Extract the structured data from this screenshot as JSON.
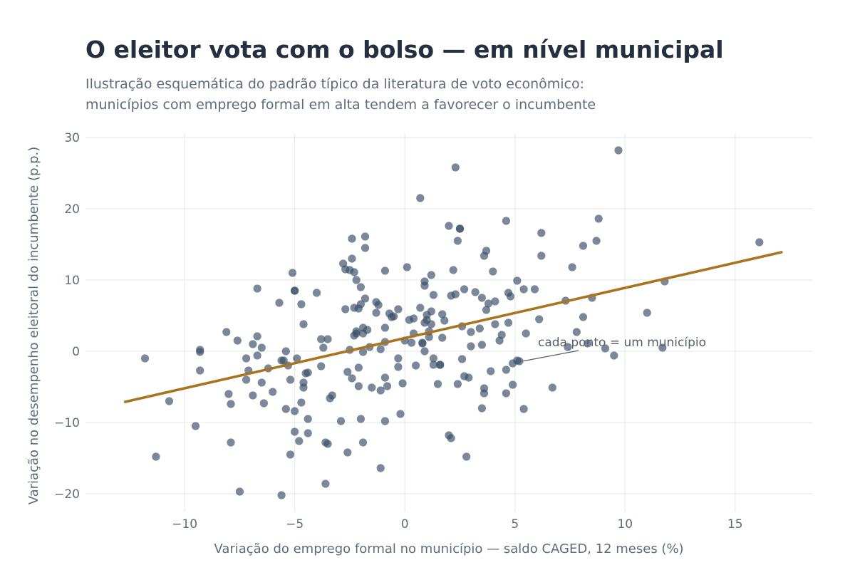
{
  "title": "O eleitor vota com o bolso — em nível municipal",
  "subtitle_lines": [
    "Ilustração esquemática do padrão típico da literatura de voto econômico:",
    "municípios com emprego formal em alta tendem a favorecer o incumbente"
  ],
  "chart_data": {
    "type": "scatter",
    "xlabel": "Variação do emprego formal no município — saldo CAGED, 12 meses (%)",
    "ylabel": "Variação no desempenho eleitoral do incumbente (p.p.)",
    "xlim": [
      -14.5,
      18.5
    ],
    "ylim": [
      -22.5,
      30.5
    ],
    "x_ticks": [
      -10,
      -5,
      0,
      5,
      10,
      15
    ],
    "x_tick_labels": [
      "−10",
      "−5",
      "0",
      "5",
      "10",
      "15"
    ],
    "y_ticks": [
      -20,
      -10,
      0,
      10,
      20,
      30
    ],
    "y_tick_labels": [
      "−20",
      "−10",
      "0",
      "10",
      "20",
      "30"
    ],
    "grid": true,
    "colors": {
      "points": "#3d5068",
      "trend": "#a87420",
      "grid": "#e6e9ee",
      "annotation": "#555e6a"
    },
    "trend_line": {
      "x": [
        -12.7,
        17.1
      ],
      "y": [
        -7.1,
        13.9
      ]
    },
    "annotation": {
      "text": "cada ponto = um município",
      "point": [
        5.2,
        -1.4
      ]
    },
    "points": [
      [
        -11.8,
        -1.0
      ],
      [
        -11.3,
        -14.8
      ],
      [
        -10.7,
        -7.0
      ],
      [
        -9.5,
        -10.5
      ],
      [
        -9.3,
        -0.1
      ],
      [
        -9.3,
        0.2
      ],
      [
        -9.3,
        -2.7
      ],
      [
        -8.1,
        2.7
      ],
      [
        -8.0,
        -6.0
      ],
      [
        -7.9,
        -7.4
      ],
      [
        -7.9,
        -12.8
      ],
      [
        -7.6,
        1.5
      ],
      [
        -7.5,
        -19.7
      ],
      [
        -7.2,
        -1.0
      ],
      [
        -7.2,
        -4.0
      ],
      [
        -7.1,
        -2.7
      ],
      [
        -6.9,
        1.0
      ],
      [
        -6.9,
        -6.2
      ],
      [
        -6.7,
        2.1
      ],
      [
        -6.7,
        -0.6
      ],
      [
        -6.7,
        8.8
      ],
      [
        -6.5,
        0.5
      ],
      [
        -6.5,
        -4.4
      ],
      [
        -6.4,
        -7.3
      ],
      [
        -6.2,
        -2.4
      ],
      [
        -6.0,
        -5.7
      ],
      [
        -5.7,
        6.8
      ],
      [
        -5.6,
        -1.3
      ],
      [
        -5.6,
        -20.2
      ],
      [
        -5.5,
        -1.3
      ],
      [
        -5.4,
        -8.1
      ],
      [
        -5.4,
        0.0
      ],
      [
        -5.3,
        -2.0
      ],
      [
        -5.2,
        -4.0
      ],
      [
        -5.2,
        -14.5
      ],
      [
        -5.1,
        11.0
      ],
      [
        -5.0,
        8.5
      ],
      [
        -5.0,
        8.5
      ],
      [
        -5.0,
        -8.4
      ],
      [
        -5.0,
        -11.3
      ],
      [
        -4.9,
        -1.0
      ],
      [
        -4.8,
        -12.6
      ],
      [
        -4.7,
        6.6
      ],
      [
        -4.7,
        -7.2
      ],
      [
        -4.6,
        -4.4
      ],
      [
        -4.6,
        -5.1
      ],
      [
        -4.6,
        3.8
      ],
      [
        -4.5,
        -3.1
      ],
      [
        -4.4,
        -3.0
      ],
      [
        -4.4,
        -9.5
      ],
      [
        -4.4,
        -11.5
      ],
      [
        -4.0,
        8.2
      ],
      [
        -3.8,
        1.7
      ],
      [
        -3.8,
        -2.1
      ],
      [
        -3.7,
        0.5
      ],
      [
        -3.6,
        -12.8
      ],
      [
        -3.6,
        -18.6
      ],
      [
        -3.5,
        -13.0
      ],
      [
        -3.5,
        1.7
      ],
      [
        -3.4,
        -6.6
      ],
      [
        -3.3,
        -6.2
      ],
      [
        -2.9,
        -9.8
      ],
      [
        -2.8,
        12.3
      ],
      [
        -2.7,
        11.5
      ],
      [
        -2.7,
        5.9
      ],
      [
        -2.6,
        -2.9
      ],
      [
        -2.6,
        -14.2
      ],
      [
        -2.5,
        11.4
      ],
      [
        -2.5,
        0.2
      ],
      [
        -2.4,
        -3.8
      ],
      [
        -2.4,
        15.8
      ],
      [
        -2.4,
        13.0
      ],
      [
        -2.3,
        11.1
      ],
      [
        -2.3,
        2.2
      ],
      [
        -2.3,
        6.1
      ],
      [
        -2.2,
        2.8
      ],
      [
        -2.2,
        2.5
      ],
      [
        -2.2,
        10.0
      ],
      [
        -2.1,
        -2.3
      ],
      [
        -2.1,
        -4.9
      ],
      [
        -2.1,
        6.0
      ],
      [
        -2.0,
        6.6
      ],
      [
        -2.0,
        9.0
      ],
      [
        -2.0,
        -9.5
      ],
      [
        -1.9,
        2.5
      ],
      [
        -1.9,
        3.3
      ],
      [
        -1.9,
        -12.8
      ],
      [
        -1.9,
        -0.1
      ],
      [
        -1.8,
        7.4
      ],
      [
        -1.8,
        16.1
      ],
      [
        -1.8,
        14.5
      ],
      [
        -1.7,
        3.0
      ],
      [
        -1.6,
        0.6
      ],
      [
        -1.5,
        -5.1
      ],
      [
        -1.3,
        5.4
      ],
      [
        -1.3,
        6.9
      ],
      [
        -1.2,
        6.5
      ],
      [
        -1.1,
        0.3
      ],
      [
        -1.1,
        -5.5
      ],
      [
        -1.1,
        -16.4
      ],
      [
        -0.9,
        -3.7
      ],
      [
        -0.9,
        -9.8
      ],
      [
        -0.9,
        11.3
      ],
      [
        -0.9,
        3.3
      ],
      [
        -0.9,
        1.3
      ],
      [
        -0.8,
        -4.9
      ],
      [
        -0.7,
        5.3
      ],
      [
        -0.6,
        4.8
      ],
      [
        -0.5,
        4.9
      ],
      [
        -0.3,
        5.9
      ],
      [
        -0.3,
        -1.0
      ],
      [
        -0.3,
        -2.2
      ],
      [
        -0.2,
        -8.8
      ],
      [
        -0.1,
        -4.5
      ],
      [
        0.0,
        1.5
      ],
      [
        0.1,
        11.8
      ],
      [
        0.2,
        4.4
      ],
      [
        0.3,
        1.2
      ],
      [
        0.4,
        4.6
      ],
      [
        0.4,
        2.5
      ],
      [
        0.5,
        -2.0
      ],
      [
        0.7,
        6.1
      ],
      [
        0.7,
        21.5
      ],
      [
        0.8,
        1.1
      ],
      [
        0.8,
        1.2
      ],
      [
        0.9,
        9.2
      ],
      [
        0.9,
        9.8
      ],
      [
        0.9,
        0.0
      ],
      [
        0.9,
        4.0
      ],
      [
        1.0,
        4.4
      ],
      [
        1.0,
        5.1
      ],
      [
        1.1,
        2.8
      ],
      [
        1.1,
        2.0
      ],
      [
        1.2,
        3.8
      ],
      [
        1.2,
        10.7
      ],
      [
        1.2,
        5.6
      ],
      [
        1.3,
        7.9
      ],
      [
        1.3,
        -1.0
      ],
      [
        1.3,
        -1.9
      ],
      [
        1.5,
        -4.6
      ],
      [
        1.6,
        -1.9
      ],
      [
        1.6,
        -1.9
      ],
      [
        1.7,
        1.9
      ],
      [
        1.7,
        5.2
      ],
      [
        1.8,
        4.3
      ],
      [
        2.0,
        17.6
      ],
      [
        2.0,
        -11.8
      ],
      [
        2.1,
        7.8
      ],
      [
        2.1,
        -12.2
      ],
      [
        2.2,
        11.4
      ],
      [
        2.3,
        25.8
      ],
      [
        2.3,
        8.0
      ],
      [
        2.4,
        -4.6
      ],
      [
        2.4,
        15.5
      ],
      [
        2.5,
        17.2
      ],
      [
        2.5,
        17.2
      ],
      [
        2.6,
        -1.1
      ],
      [
        2.6,
        3.5
      ],
      [
        2.7,
        8.7
      ],
      [
        2.7,
        -3.5
      ],
      [
        2.8,
        -14.8
      ],
      [
        2.9,
        -3.7
      ],
      [
        3.0,
        0.7
      ],
      [
        3.0,
        2.7
      ],
      [
        3.2,
        8.3
      ],
      [
        3.4,
        3.2
      ],
      [
        3.5,
        7.5
      ],
      [
        3.5,
        0.9
      ],
      [
        3.5,
        -8.0
      ],
      [
        3.6,
        -5.2
      ],
      [
        3.6,
        -5.9
      ],
      [
        3.6,
        13.4
      ],
      [
        3.7,
        14.1
      ],
      [
        3.7,
        5.8
      ],
      [
        3.8,
        6.7
      ],
      [
        3.9,
        -2.8
      ],
      [
        4.0,
        11.2
      ],
      [
        4.1,
        3.8
      ],
      [
        4.1,
        7.0
      ],
      [
        4.3,
        1.5
      ],
      [
        4.4,
        2.3
      ],
      [
        4.6,
        18.3
      ],
      [
        4.6,
        -2.6
      ],
      [
        4.6,
        -5.9
      ],
      [
        4.7,
        8.2
      ],
      [
        4.7,
        4.0
      ],
      [
        4.8,
        7.7
      ],
      [
        4.9,
        -1.7
      ],
      [
        4.9,
        -4.7
      ],
      [
        5.1,
        9.9
      ],
      [
        5.1,
        -1.3
      ],
      [
        5.2,
        -1.4
      ],
      [
        5.4,
        8.7
      ],
      [
        5.4,
        -8.1
      ],
      [
        5.5,
        2.5
      ],
      [
        5.9,
        8.7
      ],
      [
        6.1,
        4.5
      ],
      [
        6.2,
        13.4
      ],
      [
        6.2,
        16.6
      ],
      [
        6.7,
        -5.1
      ],
      [
        7.3,
        7.1
      ],
      [
        7.4,
        0.6
      ],
      [
        7.6,
        11.8
      ],
      [
        7.8,
        2.7
      ],
      [
        8.1,
        14.8
      ],
      [
        8.1,
        4.8
      ],
      [
        8.3,
        1.1
      ],
      [
        8.5,
        7.5
      ],
      [
        8.7,
        15.5
      ],
      [
        8.8,
        18.6
      ],
      [
        9.1,
        0.4
      ],
      [
        9.5,
        -0.6
      ],
      [
        9.7,
        28.2
      ],
      [
        11.0,
        5.4
      ],
      [
        11.7,
        0.5
      ],
      [
        11.8,
        9.8
      ],
      [
        16.1,
        15.3
      ]
    ]
  }
}
